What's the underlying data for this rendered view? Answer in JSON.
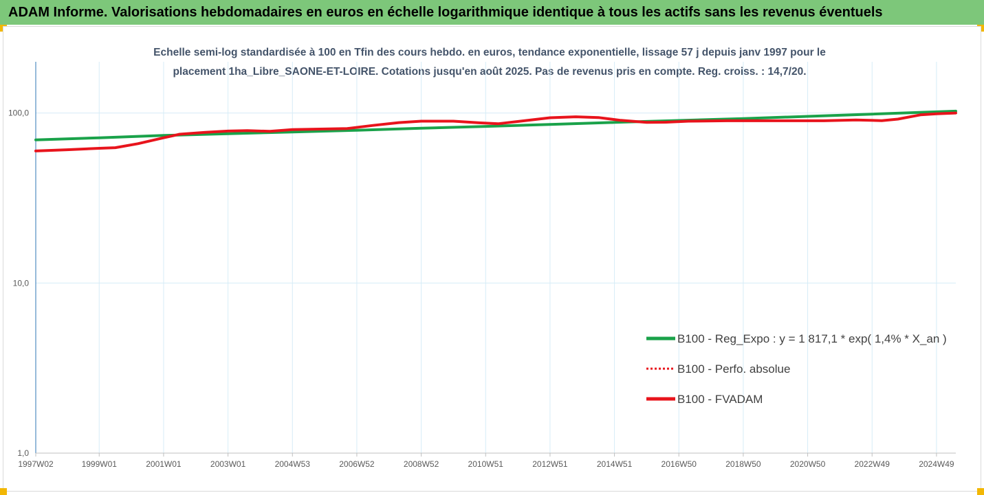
{
  "banner": {
    "title": "ADAM Informe. Valorisations hebdomadaires en euros en échelle logarithmique identique à tous les actifs sans les revenus éventuels"
  },
  "colors": {
    "banner_bg": "#7dc77a",
    "corner": "#f2b705",
    "green_series": "#1aa24a",
    "red_series": "#e8141c",
    "title_text": "#44546a",
    "axis": "#2e75b6"
  },
  "chart_data": {
    "type": "line",
    "title_lines": [
      "Echelle semi-log standardisée à 100 en Tfin des cours hebdo. en euros, tendance exponentielle, lissage 57 j depuis janv 1997 pour le",
      "placement 1ha_Libre_SAONE-ET-LOIRE. Cotations jusqu'en août 2025. Pas de revenus pris en compte. Reg. croiss. : 14,7/20."
    ],
    "y_scale": "log",
    "ylim": [
      1,
      200
    ],
    "y_ticks": [
      {
        "value": 1,
        "label": "1,0"
      },
      {
        "value": 10,
        "label": "10,0"
      },
      {
        "value": 100,
        "label": "100,0"
      }
    ],
    "xlim": [
      1997.03,
      2025.6
    ],
    "x_ticks": [
      {
        "value": 1997.03,
        "label": "1997W02"
      },
      {
        "value": 1999.0,
        "label": "1999W01"
      },
      {
        "value": 2001.0,
        "label": "2001W01"
      },
      {
        "value": 2003.0,
        "label": "2003W01"
      },
      {
        "value": 2005.0,
        "label": "2004W53"
      },
      {
        "value": 2007.0,
        "label": "2006W52"
      },
      {
        "value": 2009.0,
        "label": "2008W52"
      },
      {
        "value": 2011.0,
        "label": "2010W51"
      },
      {
        "value": 2013.0,
        "label": "2012W51"
      },
      {
        "value": 2015.0,
        "label": "2014W51"
      },
      {
        "value": 2017.0,
        "label": "2016W50"
      },
      {
        "value": 2019.0,
        "label": "2018W50"
      },
      {
        "value": 2021.0,
        "label": "2020W50"
      },
      {
        "value": 2023.0,
        "label": "2022W49"
      },
      {
        "value": 2025.0,
        "label": "2024W49"
      }
    ],
    "grid": "vertical",
    "legend_position": "right-middle",
    "series": [
      {
        "name": "B100 - Reg_Expo : y = 1 817,1 * exp( 1,4% *  X_an )",
        "color": "#1aa24a",
        "style": "solid",
        "points": [
          [
            1997.03,
            69.5
          ],
          [
            1999.0,
            71.5
          ],
          [
            2001.0,
            73.8
          ],
          [
            2003.0,
            75.6
          ],
          [
            2005.0,
            77.3
          ],
          [
            2007.0,
            79.2
          ],
          [
            2009.0,
            81.3
          ],
          [
            2011.0,
            83.4
          ],
          [
            2013.0,
            85.7
          ],
          [
            2015.0,
            88.0
          ],
          [
            2017.0,
            90.3
          ],
          [
            2019.0,
            92.7
          ],
          [
            2021.0,
            95.5
          ],
          [
            2023.0,
            98.5
          ],
          [
            2025.6,
            102.5
          ]
        ]
      },
      {
        "name": "B100 - Perfo. absolue",
        "color": "#e8141c",
        "style": "dotted",
        "points": []
      },
      {
        "name": "B100 - FVADAM",
        "color": "#e8141c",
        "style": "solid",
        "points": [
          [
            1997.03,
            59.8
          ],
          [
            1998.0,
            60.8
          ],
          [
            1999.0,
            62.0
          ],
          [
            1999.5,
            62.5
          ],
          [
            2000.2,
            66.0
          ],
          [
            2001.0,
            71.5
          ],
          [
            2001.5,
            75.0
          ],
          [
            2002.3,
            77.0
          ],
          [
            2003.0,
            78.3
          ],
          [
            2003.6,
            78.8
          ],
          [
            2004.3,
            78.0
          ],
          [
            2005.0,
            79.8
          ],
          [
            2006.0,
            80.5
          ],
          [
            2006.7,
            81.0
          ],
          [
            2007.5,
            84.5
          ],
          [
            2008.3,
            87.8
          ],
          [
            2009.0,
            89.5
          ],
          [
            2010.0,
            89.5
          ],
          [
            2010.8,
            87.5
          ],
          [
            2011.4,
            86.5
          ],
          [
            2012.2,
            90.0
          ],
          [
            2013.0,
            93.8
          ],
          [
            2013.8,
            95.0
          ],
          [
            2014.5,
            94.0
          ],
          [
            2015.2,
            90.5
          ],
          [
            2016.0,
            88.0
          ],
          [
            2016.6,
            88.3
          ],
          [
            2017.3,
            89.5
          ],
          [
            2018.5,
            90.0
          ],
          [
            2020.0,
            90.0
          ],
          [
            2021.5,
            90.0
          ],
          [
            2022.5,
            91.0
          ],
          [
            2023.3,
            90.2
          ],
          [
            2023.8,
            92.0
          ],
          [
            2024.5,
            97.5
          ],
          [
            2025.0,
            99.0
          ],
          [
            2025.6,
            100.0
          ]
        ]
      }
    ]
  }
}
